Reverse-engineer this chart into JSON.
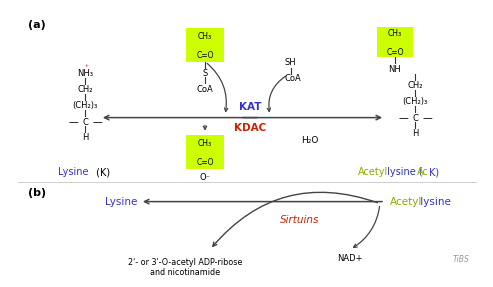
{
  "bg_color": "#ffffff",
  "panel_a_label": "(a)",
  "panel_b_label": "(b)",
  "kat_label": "KAT",
  "kdac_label": "KDAC",
  "sirtuins_label": "Sirtuins",
  "adp_ribose_label": "2'- or 3'-O-acetyl ADP-ribose\nand nicotinamide",
  "nad_label": "NAD+",
  "tibs_label": "TiBS",
  "h2o_label": "H₂O",
  "kat_color": "#3333cc",
  "kdac_color": "#cc2200",
  "sirtuins_color": "#cc2200",
  "lysine_color": "#3333cc",
  "acetyl_color": "#88aa00",
  "arrow_color": "#444444",
  "box_color": "#ccff00",
  "line_color": "#333333"
}
